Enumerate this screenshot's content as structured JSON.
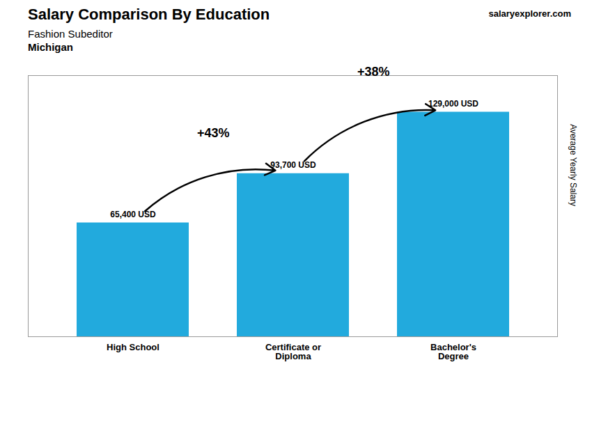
{
  "chart_data": {
    "type": "bar",
    "title": "Salary Comparison By Education",
    "subtitle": [
      "Fashion Subeditor",
      "Michigan"
    ],
    "ylabel": "Average Yearly Salary",
    "categories": [
      "High School",
      "Certificate or\nDiploma",
      "Bachelor's\nDegree"
    ],
    "values": [
      65400,
      93700,
      129000
    ],
    "value_labels": [
      "65,400 USD",
      "93,700 USD",
      "129,000 USD"
    ],
    "color": "#22aadd",
    "ylim": [
      0,
      150000
    ],
    "tick_labels": "x",
    "grid": false,
    "data_labels": true,
    "annotations": [
      {
        "text": "+43%",
        "from": "High School",
        "to": "Certificate or\nDiploma"
      },
      {
        "text": "+38%",
        "from": "Certificate or\nDiploma",
        "to": "Bachelor's\nDegree"
      },
      {
        "text": "salaryexplorer.com"
      }
    ]
  }
}
